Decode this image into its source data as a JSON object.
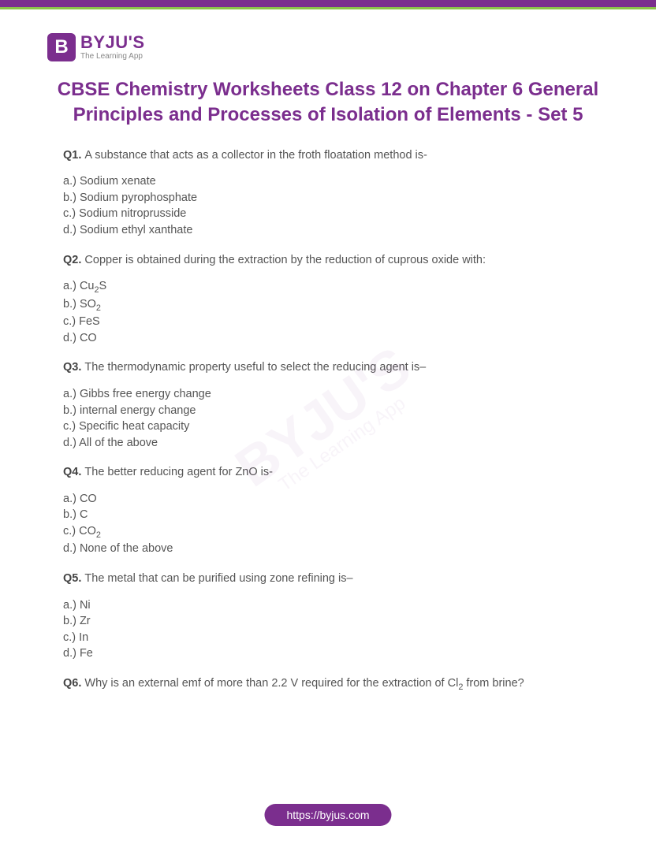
{
  "brand": {
    "letter": "B",
    "name": "BYJU'S",
    "tagline": "The Learning App"
  },
  "heading": "CBSE Chemistry Worksheets Class 12 on Chapter 6 General Principles and Processes of Isolation of Elements - Set 5",
  "questions": [
    {
      "num": "Q1.",
      "text": "A substance that acts as a collector in the froth floatation method is-",
      "opts": [
        "a.) Sodium xenate",
        "b.) Sodium pyrophosphate",
        "c.) Sodium nitroprusside",
        "d.) Sodium ethyl xanthate"
      ]
    },
    {
      "num": "Q2.",
      "text": "Copper is obtained during the extraction by the reduction of cuprous oxide with:",
      "opts_html": [
        "a.) Cu<sub>2</sub>S",
        "b.) SO<sub>2</sub>",
        "c.) FeS",
        "d.) CO"
      ]
    },
    {
      "num": "Q3.",
      "text": "The thermodynamic property useful to select the reducing agent is–",
      "opts": [
        "a.) Gibbs free energy change",
        "b.) internal energy change",
        "c.) Specific heat capacity",
        "d.) All of the above"
      ]
    },
    {
      "num": "Q4.",
      "text": "The better reducing agent for ZnO is-",
      "opts_html": [
        "a.) CO",
        "b.) C",
        "c.) CO<sub>2</sub>",
        "d.) None of the above"
      ]
    },
    {
      "num": "Q5.",
      "text": "The metal that can be purified using zone refining is–",
      "opts": [
        "a.) Ni",
        "b.) Zr",
        "c.) In",
        "d.) Fe"
      ]
    },
    {
      "num": "Q6.",
      "text_html": "Why is an external emf of more than 2.2 V required for the extraction of Cl<sub>2</sub> from brine?"
    }
  ],
  "watermark": {
    "main": "BYJU'S",
    "sub": "The Learning App"
  },
  "footer_url": "https://byjus.com",
  "colors": {
    "brand": "#7b2e8e",
    "accent": "#8bc34a",
    "text": "#555555",
    "bg": "#ffffff"
  }
}
